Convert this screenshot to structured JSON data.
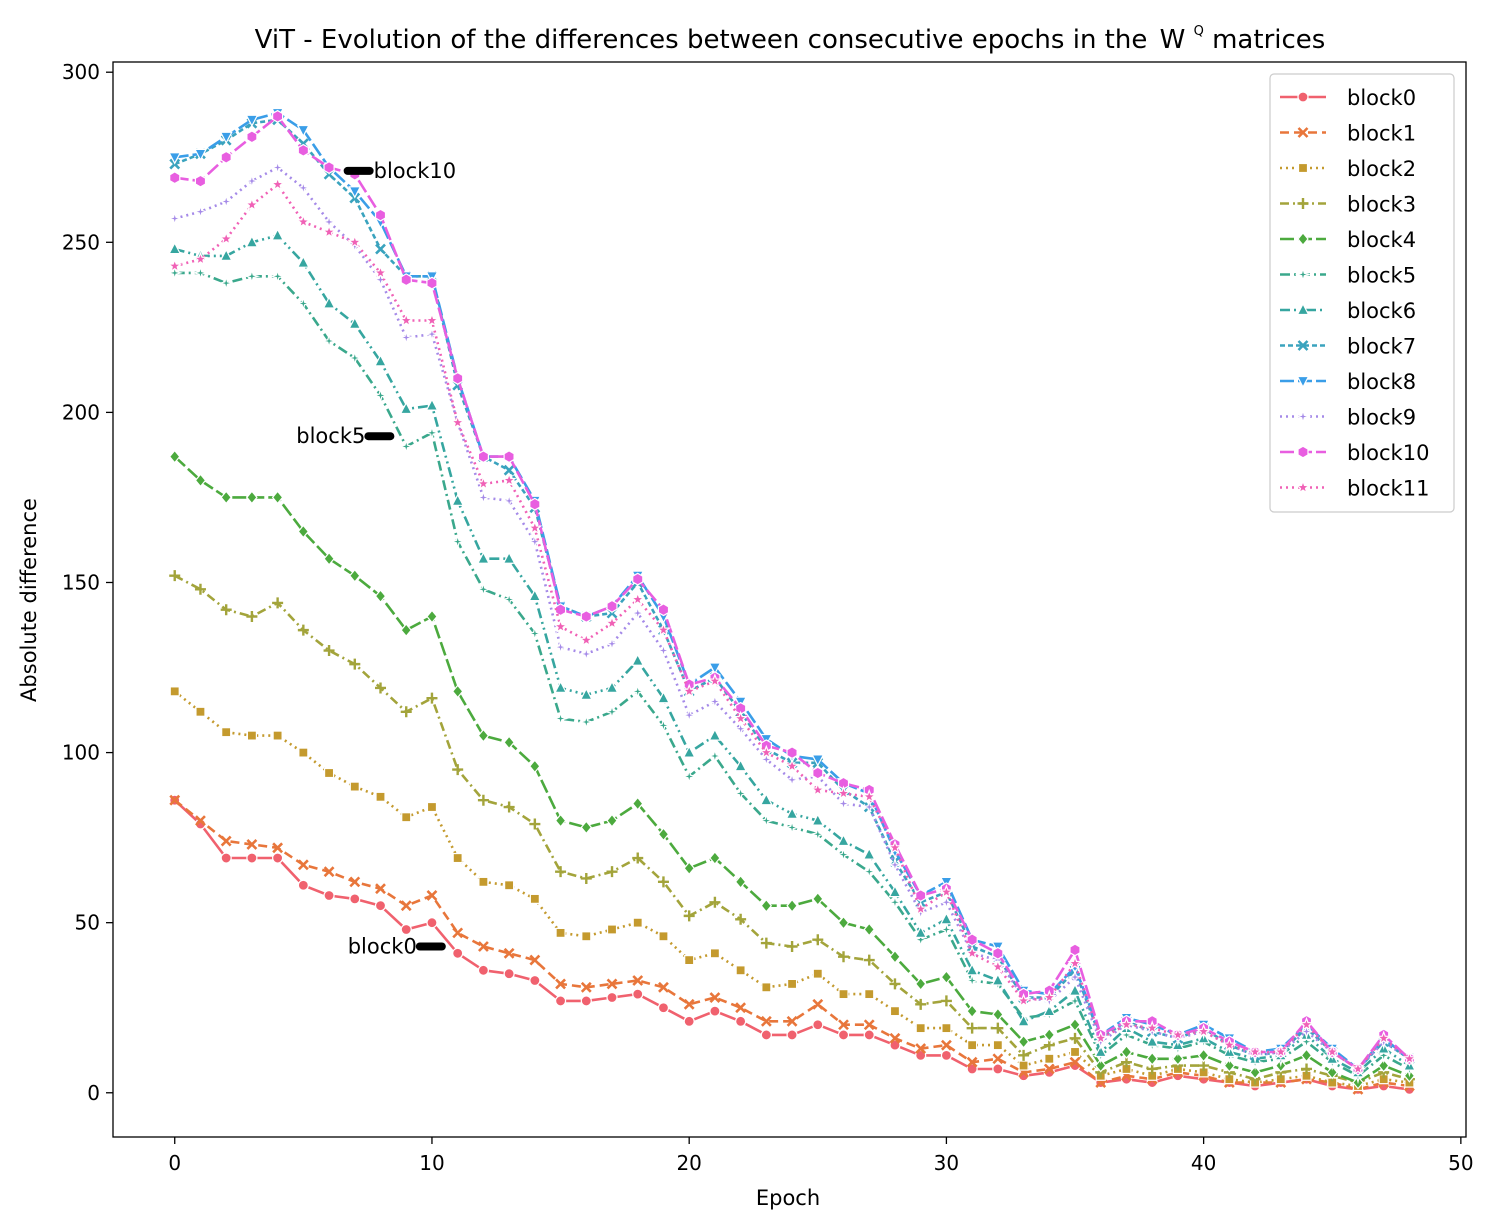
{
  "chart_data": {
    "type": "line",
    "title": "ViT - Evolution of the differences between consecutive epochs in the",
    "title_symbol": "W",
    "title_superscript": "Q",
    "title_suffix": "matrices",
    "xlabel": "Epoch",
    "ylabel": "Absolute difference",
    "xlim": [
      -2.4,
      50.2
    ],
    "ylim": [
      -13,
      303
    ],
    "xticks": [
      0,
      10,
      20,
      30,
      40,
      50
    ],
    "yticks": [
      0,
      50,
      100,
      150,
      200,
      250,
      300
    ],
    "grid": false,
    "legend_position": "top-right",
    "x": [
      0,
      1,
      2,
      3,
      4,
      5,
      6,
      7,
      8,
      9,
      10,
      11,
      12,
      13,
      14,
      15,
      16,
      17,
      18,
      19,
      20,
      21,
      22,
      23,
      24,
      25,
      26,
      27,
      28,
      29,
      30,
      31,
      32,
      33,
      34,
      35,
      36,
      37,
      38,
      39,
      40,
      41,
      42,
      43,
      44,
      45,
      46,
      47,
      48
    ],
    "series": [
      {
        "name": "block0",
        "color": "#f0616e",
        "marker": "circle",
        "dash": "",
        "values": [
          86,
          79,
          69,
          69,
          69,
          61,
          58,
          57,
          55,
          48,
          50,
          41,
          36,
          35,
          33,
          27,
          27,
          28,
          29,
          25,
          21,
          24,
          21,
          17,
          17,
          20,
          17,
          17,
          14,
          11,
          11,
          7,
          7,
          5,
          6,
          8,
          3,
          4,
          3,
          5,
          4,
          3,
          2,
          3,
          4,
          2,
          1,
          2,
          1
        ]
      },
      {
        "name": "block1",
        "color": "#e8763b",
        "marker": "x",
        "dash": "9,5",
        "values": [
          86,
          80,
          74,
          73,
          72,
          67,
          65,
          62,
          60,
          55,
          58,
          47,
          43,
          41,
          39,
          32,
          31,
          32,
          33,
          31,
          26,
          28,
          25,
          21,
          21,
          26,
          20,
          20,
          16,
          13,
          14,
          9,
          10,
          6,
          7,
          9,
          3,
          5,
          4,
          6,
          5,
          3,
          3,
          3,
          4,
          3,
          1,
          3,
          2
        ]
      },
      {
        "name": "block2",
        "color": "#c49a2e",
        "marker": "square",
        "dash": "2,4",
        "values": [
          118,
          112,
          106,
          105,
          105,
          100,
          94,
          90,
          87,
          81,
          84,
          69,
          62,
          61,
          57,
          47,
          46,
          48,
          50,
          46,
          39,
          41,
          36,
          31,
          32,
          35,
          29,
          29,
          24,
          19,
          19,
          14,
          14,
          8,
          10,
          12,
          5,
          7,
          5,
          7,
          6,
          4,
          3,
          4,
          5,
          3,
          2,
          4,
          3
        ]
      },
      {
        "name": "block3",
        "color": "#a3a43b",
        "marker": "plus",
        "dash": "9,4,2,4",
        "values": [
          152,
          148,
          142,
          140,
          144,
          136,
          130,
          126,
          119,
          112,
          116,
          95,
          86,
          84,
          79,
          65,
          63,
          65,
          69,
          62,
          52,
          56,
          51,
          44,
          43,
          45,
          40,
          39,
          32,
          26,
          27,
          19,
          19,
          11,
          14,
          16,
          6,
          9,
          7,
          8,
          8,
          6,
          4,
          6,
          7,
          5,
          3,
          6,
          4
        ]
      },
      {
        "name": "block4",
        "color": "#4caa3e",
        "marker": "diamond",
        "dash": "14,4",
        "values": [
          187,
          180,
          175,
          175,
          175,
          165,
          157,
          152,
          146,
          136,
          140,
          118,
          105,
          103,
          96,
          80,
          78,
          80,
          85,
          76,
          66,
          69,
          62,
          55,
          55,
          57,
          50,
          48,
          40,
          32,
          34,
          24,
          23,
          15,
          17,
          20,
          8,
          12,
          10,
          10,
          11,
          8,
          6,
          8,
          11,
          6,
          3,
          8,
          5
        ]
      },
      {
        "name": "block5",
        "color": "#3aa88c",
        "marker": "star4",
        "dash": "10,4,2,4",
        "values": [
          241,
          241,
          238,
          240,
          240,
          232,
          221,
          216,
          205,
          190,
          194,
          162,
          148,
          145,
          135,
          110,
          109,
          112,
          118,
          108,
          93,
          99,
          88,
          80,
          78,
          76,
          70,
          65,
          56,
          45,
          48,
          33,
          32,
          22,
          23,
          27,
          11,
          17,
          14,
          13,
          15,
          11,
          9,
          10,
          15,
          9,
          5,
          11,
          7
        ]
      },
      {
        "name": "block6",
        "color": "#36a6a0",
        "marker": "triangle",
        "dash": "10,4,2,4,2,4",
        "values": [
          248,
          246,
          246,
          250,
          252,
          244,
          232,
          226,
          215,
          201,
          202,
          174,
          157,
          157,
          146,
          119,
          117,
          119,
          127,
          116,
          100,
          105,
          96,
          86,
          82,
          80,
          74,
          70,
          59,
          47,
          51,
          36,
          33,
          21,
          24,
          30,
          12,
          19,
          15,
          14,
          16,
          12,
          10,
          11,
          17,
          10,
          6,
          13,
          8
        ]
      },
      {
        "name": "block7",
        "color": "#3aa3be",
        "marker": "x",
        "dash": "5,3",
        "values": [
          273,
          276,
          280,
          285,
          286,
          279,
          270,
          263,
          248,
          240,
          240,
          208,
          187,
          183,
          172,
          143,
          140,
          141,
          150,
          136,
          118,
          122,
          112,
          101,
          97,
          97,
          89,
          84,
          68,
          56,
          59,
          43,
          40,
          28,
          28,
          36,
          16,
          21,
          18,
          16,
          19,
          14,
          11,
          12,
          19,
          12,
          7,
          15,
          10
        ]
      },
      {
        "name": "block8",
        "color": "#3a9ee8",
        "marker": "tri_down",
        "dash": "14,4",
        "values": [
          275,
          276,
          281,
          286,
          288,
          283,
          272,
          265,
          256,
          240,
          240,
          210,
          187,
          187,
          174,
          143,
          140,
          143,
          152,
          140,
          120,
          125,
          115,
          104,
          99,
          98,
          91,
          88,
          71,
          58,
          62,
          45,
          43,
          30,
          29,
          37,
          17,
          22,
          20,
          17,
          20,
          16,
          12,
          13,
          20,
          13,
          7,
          16,
          10
        ]
      },
      {
        "name": "block9",
        "color": "#a58ae8",
        "marker": "star4",
        "dash": "2,4",
        "values": [
          257,
          259,
          262,
          268,
          272,
          266,
          256,
          249,
          239,
          222,
          223,
          197,
          175,
          174,
          162,
          131,
          129,
          132,
          141,
          130,
          111,
          115,
          107,
          98,
          92,
          93,
          85,
          84,
          67,
          53,
          56,
          41,
          39,
          28,
          27,
          34,
          15,
          20,
          18,
          16,
          18,
          14,
          11,
          12,
          18,
          12,
          7,
          15,
          10
        ]
      },
      {
        "name": "block10",
        "color": "#e85ee0",
        "marker": "hexagon",
        "dash": "14,4",
        "values": [
          269,
          268,
          275,
          281,
          287,
          277,
          272,
          270,
          258,
          239,
          238,
          210,
          187,
          187,
          173,
          142,
          140,
          143,
          151,
          142,
          120,
          122,
          113,
          102,
          100,
          94,
          91,
          89,
          73,
          58,
          60,
          45,
          41,
          29,
          30,
          42,
          17,
          21,
          21,
          17,
          19,
          15,
          12,
          12,
          21,
          12,
          7,
          17,
          10
        ]
      },
      {
        "name": "block11",
        "color": "#f061b6",
        "marker": "star",
        "dash": "2,4",
        "values": [
          243,
          245,
          251,
          261,
          267,
          256,
          253,
          250,
          241,
          227,
          227,
          197,
          179,
          180,
          166,
          137,
          133,
          138,
          145,
          136,
          118,
          121,
          110,
          100,
          96,
          89,
          88,
          87,
          72,
          54,
          59,
          41,
          37,
          27,
          28,
          38,
          16,
          20,
          19,
          17,
          18,
          14,
          12,
          12,
          20,
          12,
          7,
          16,
          10
        ]
      }
    ],
    "annotations": [
      {
        "text": "block10",
        "x": 7.5,
        "y": 271,
        "anchor": "start"
      },
      {
        "text": "block5",
        "x": 8.5,
        "y": 193,
        "anchor": "end"
      },
      {
        "text": "block0",
        "x": 10.5,
        "y": 43,
        "anchor": "end"
      }
    ]
  }
}
